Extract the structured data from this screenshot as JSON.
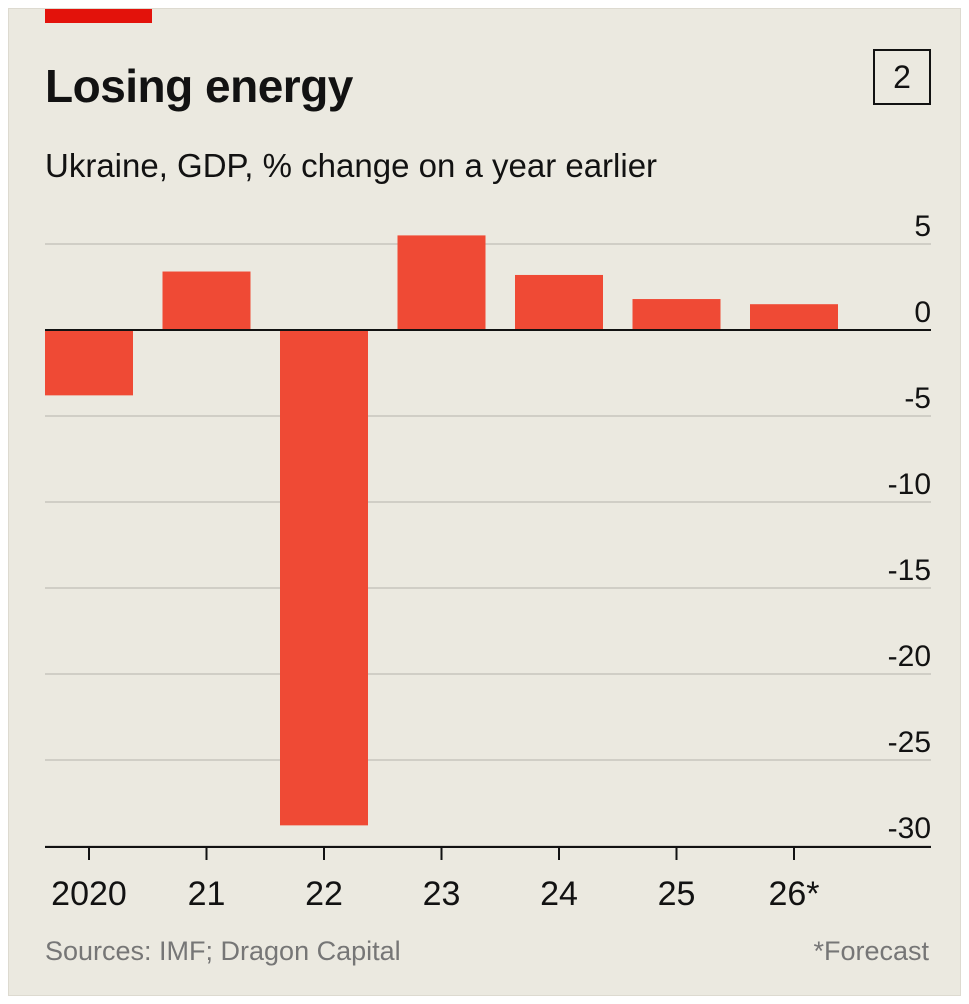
{
  "header": {
    "title": "Losing energy",
    "chart_number": "2",
    "subtitle": "Ukraine, GDP, % change on a year earlier"
  },
  "footer": {
    "source": "Sources: IMF; Dragon Capital",
    "footnote": "*Forecast"
  },
  "colors": {
    "bar": "#ef4a35",
    "background": "#ebe9e0",
    "accent": "#e3120b",
    "grid": "#c8c6bd",
    "axis": "#121212",
    "text": "#121212",
    "muted": "#767676"
  },
  "chart_data": {
    "type": "bar",
    "title": "Losing energy",
    "subtitle": "Ukraine, GDP, % change on a year earlier",
    "categories": [
      "2020",
      "21",
      "22",
      "23",
      "24",
      "25",
      "26*"
    ],
    "values": [
      -3.8,
      3.4,
      -28.8,
      5.5,
      3.2,
      1.8,
      1.5
    ],
    "yticks": [
      5,
      0,
      -5,
      -10,
      -15,
      -20,
      -25,
      -30
    ],
    "ylim": [
      -30,
      5
    ],
    "xlabel": "",
    "ylabel": "",
    "grid": true,
    "y_axis_position": "right"
  }
}
